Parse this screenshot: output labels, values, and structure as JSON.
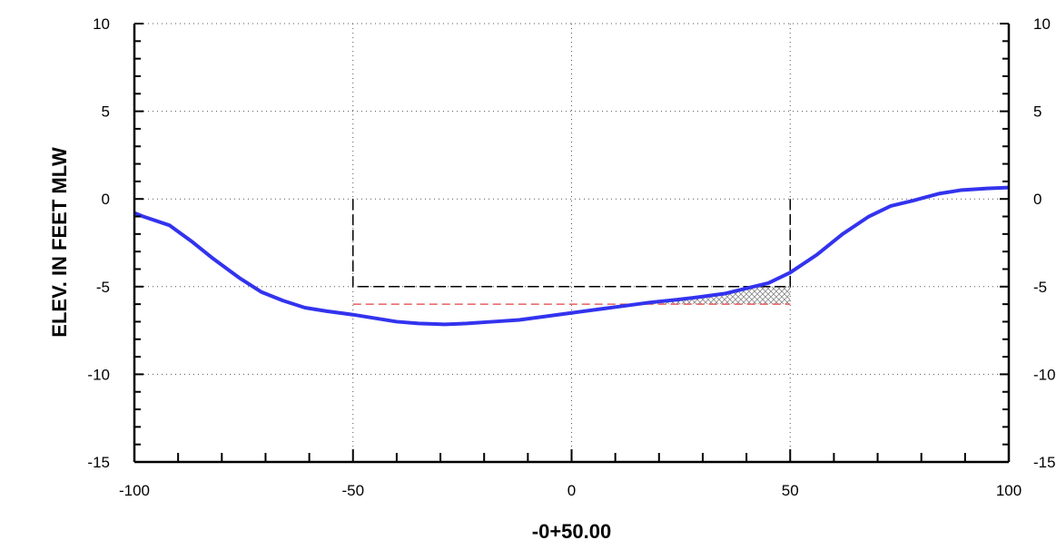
{
  "chart_data": {
    "type": "line",
    "title": "",
    "xlabel": "-0+50.00",
    "ylabel": "ELEV. IN FEET MLW",
    "xlim": [
      -100,
      100
    ],
    "ylim": [
      -15,
      10
    ],
    "x_ticks": [
      -100,
      -50,
      0,
      50,
      100
    ],
    "y_ticks": [
      10,
      5,
      0,
      -5,
      -10,
      -15
    ],
    "x_tick_labels": [
      "-100",
      "-50",
      "0",
      "50",
      "100"
    ],
    "y_tick_labels": [
      "10",
      "5",
      "0",
      "-5",
      "-10",
      "-15"
    ],
    "right_y_tick_labels": [
      "10",
      "5",
      "0",
      "-5",
      "-10",
      "-15"
    ],
    "grid": "dotted",
    "series": [
      {
        "color": "#3333ee",
        "x": [
          -100,
          -98,
          -92,
          -87,
          -82,
          -76,
          -71,
          -66,
          -61,
          -56,
          -50,
          -45,
          -40,
          -35,
          -29,
          -24,
          -18,
          -12,
          -6,
          0,
          6,
          12,
          18,
          24,
          29,
          35,
          40,
          45,
          50,
          56,
          62,
          68,
          73,
          78,
          84,
          89,
          95,
          100
        ],
        "y": [
          -0.8,
          -1.0,
          -1.5,
          -2.4,
          -3.4,
          -4.5,
          -5.3,
          -5.8,
          -6.2,
          -6.4,
          -6.6,
          -6.8,
          -7.0,
          -7.1,
          -7.15,
          -7.1,
          -7.0,
          -6.9,
          -6.7,
          -6.5,
          -6.3,
          -6.1,
          -5.9,
          -5.75,
          -5.6,
          -5.4,
          -5.1,
          -4.8,
          -4.2,
          -3.2,
          -2.0,
          -1.0,
          -0.4,
          -0.1,
          0.3,
          0.5,
          0.6,
          0.65
        ]
      }
    ],
    "design_template": {
      "color": "#000000",
      "style": "dashed",
      "x": [
        -50,
        -50,
        50,
        50
      ],
      "y": [
        0,
        -5,
        -5,
        0
      ]
    },
    "overdepth_line": {
      "color": "#e04040",
      "style": "dashed",
      "x": [
        -50,
        50
      ],
      "y": [
        -6,
        -6
      ]
    },
    "hatched_area": {
      "x_from": 18,
      "x_to": 50,
      "upper_y": -5,
      "lower_y": -6
    }
  }
}
